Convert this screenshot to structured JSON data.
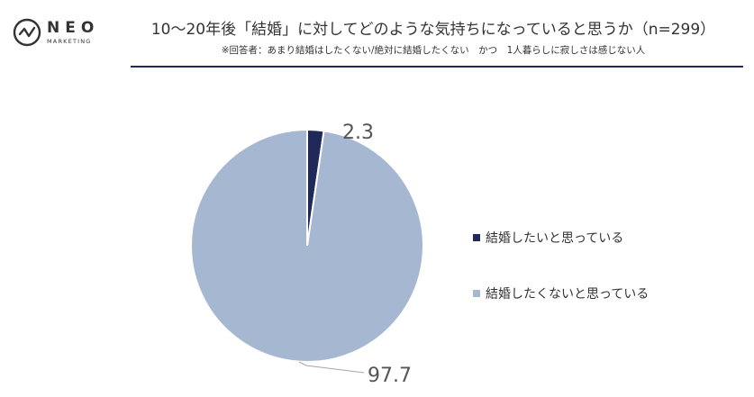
{
  "header": {
    "logo_text": "NEO",
    "logo_sub": "MARKETING",
    "title": "10〜20年後「結婚」に対してどのような気持ちになっていると思うか（n=299）",
    "subtitle": "※回答者：あまり結婚はしたくない/絶対に結婚したくない　かつ　1人暮らしに寂しさは感じない人"
  },
  "colors": {
    "rule": "#1f2a5a",
    "series_1": "#1f2a5a",
    "series_2": "#a6b8d1"
  },
  "chart_data": {
    "type": "pie",
    "title": "10〜20年後「結婚」に対してどのような気持ちになっていると思うか（n=299）",
    "slices": [
      {
        "label": "結婚したいと思っている",
        "value": 2.3,
        "color": "#1f2a5a"
      },
      {
        "label": "結婚したくないと思っている",
        "value": 97.7,
        "color": "#a6b8d1"
      }
    ],
    "start_angle": "12 o'clock",
    "direction": "clockwise",
    "legend_position": "right",
    "data_labels": "outside with leader lines"
  }
}
